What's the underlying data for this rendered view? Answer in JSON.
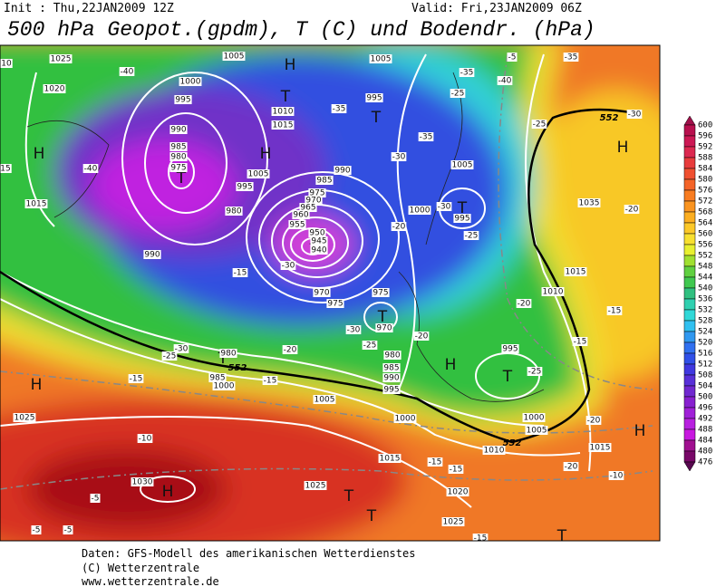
{
  "header": {
    "init": "Init : Thu,22JAN2009 12Z",
    "valid": "Valid: Fri,23JAN2009 06Z",
    "title": "500 hPa Geopot.(gpdm), T (C) und Bodendr. (hPa)"
  },
  "legend": {
    "values": [
      600,
      596,
      592,
      588,
      584,
      580,
      576,
      572,
      568,
      564,
      560,
      556,
      552,
      548,
      544,
      540,
      536,
      532,
      528,
      524,
      520,
      516,
      512,
      508,
      504,
      500,
      496,
      492,
      488,
      484,
      480,
      476
    ],
    "colors": [
      "#a0104a",
      "#b8104e",
      "#cc1854",
      "#dc2850",
      "#e83c3c",
      "#f05030",
      "#f46428",
      "#f87c20",
      "#fa9420",
      "#fcae20",
      "#fcc828",
      "#f8e030",
      "#e8f030",
      "#a0e030",
      "#60d040",
      "#40c850",
      "#30c080",
      "#30d0b0",
      "#30d8d8",
      "#30c0f0",
      "#3098f0",
      "#3070f0",
      "#3050e8",
      "#4038e0",
      "#5830d8",
      "#7028d0",
      "#8820d0",
      "#a020d8",
      "#b820e0",
      "#c818e0",
      "#a01090",
      "#780868",
      "#580850"
    ]
  },
  "map": {
    "labels": [
      "H",
      "T",
      "H",
      "T",
      "H",
      "T",
      "T",
      "T",
      "T",
      "H",
      "T",
      "H",
      "H",
      "H",
      "T",
      "T",
      "H",
      "T",
      "T",
      "1025",
      "1020",
      "1005",
      "1005",
      "1000",
      "995",
      "1010",
      "1015",
      "990",
      "985",
      "980",
      "975",
      "1005",
      "995",
      "990",
      "985",
      "975",
      "970",
      "965",
      "960",
      "955",
      "950",
      "945",
      "940",
      "980",
      "1000",
      "995",
      "1005",
      "990",
      "970",
      "975",
      "975",
      "970",
      "980",
      "985",
      "990",
      "995",
      "1005",
      "1000",
      "980",
      "985",
      "1000",
      "995",
      "1000",
      "1005",
      "1010",
      "1015",
      "1015",
      "1025",
      "1030",
      "1025",
      "1020",
      "1025",
      "1015",
      "1010",
      "1035",
      "995",
      "1015",
      "10",
      "15",
      "-40",
      "-35",
      "-35",
      "-35",
      "-40",
      "-5",
      "-25",
      "-30",
      "-40",
      "-35",
      "-30",
      "-25",
      "-20",
      "-30",
      "-25",
      "-20",
      "-15",
      "-30",
      "-30",
      "-25",
      "-20",
      "-20",
      "-30",
      "-25",
      "-15",
      "-15",
      "-25",
      "-20",
      "-15",
      "-15",
      "-10",
      "-10",
      "-20",
      "-15",
      "-15",
      "-20",
      "-5",
      "-5",
      "-5",
      "-15",
      "552",
      "552",
      "552"
    ]
  },
  "footer": {
    "line1": "Daten: GFS-Modell des amerikanischen Wetterdienstes",
    "line2": "(C) Wetterzentrale",
    "line3": "www.wetterzentrale.de"
  }
}
